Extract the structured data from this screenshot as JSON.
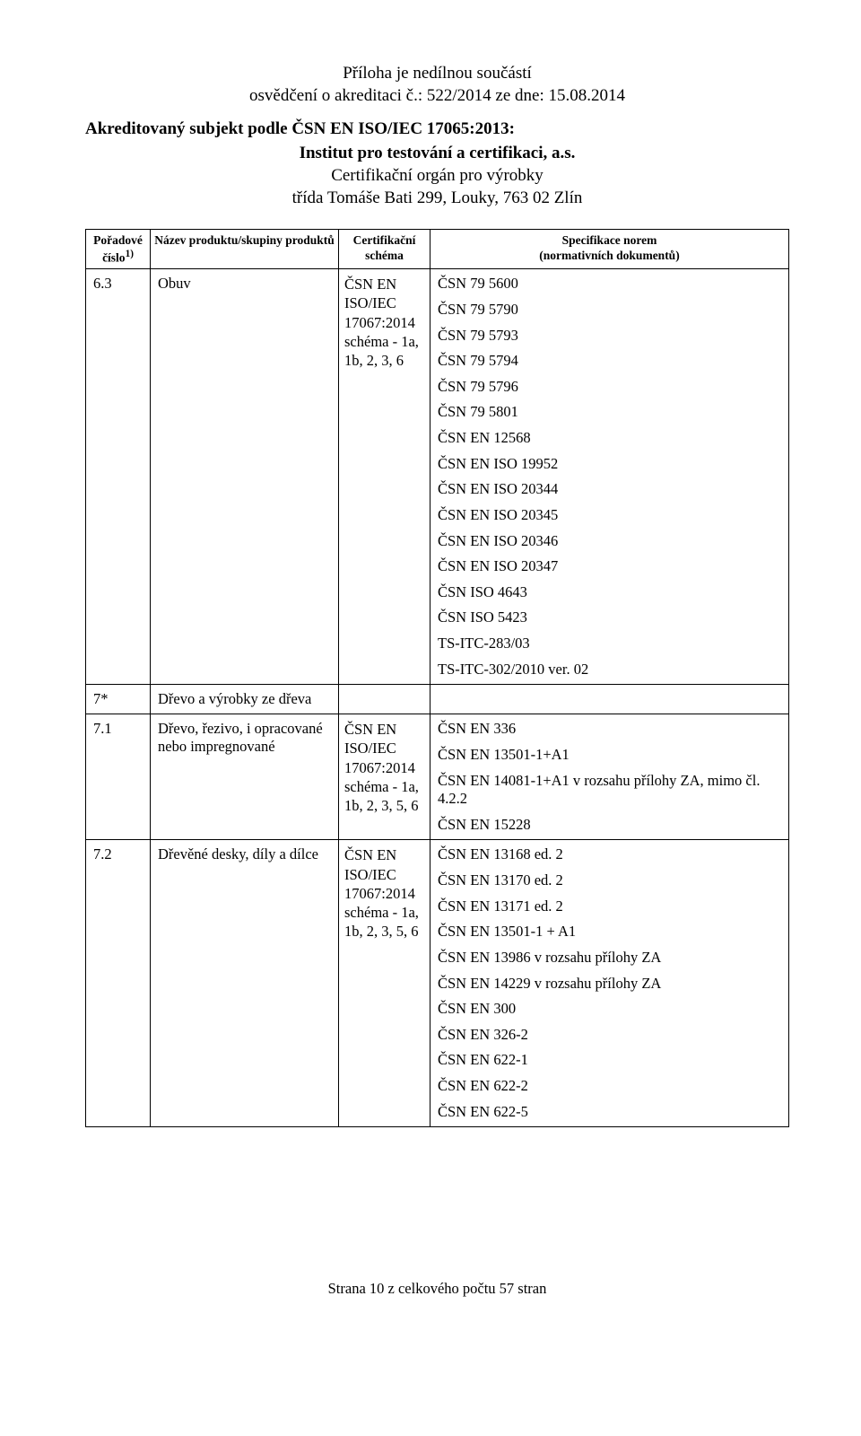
{
  "header": {
    "line1": "Příloha je nedílnou součástí",
    "line2": "osvědčení o akreditaci č.: 522/2014 ze dne: 15.08.2014",
    "left": "Akreditovaný subjekt podle ČSN EN ISO/IEC 17065:2013:",
    "sub1": "Institut pro testování a certifikaci, a.s.",
    "sub2": "Certifikační orgán pro výrobky",
    "sub3": "třída Tomáše Bati 299, Louky, 763 02 Zlín"
  },
  "table": {
    "headers": {
      "col1a": "Pořadové",
      "col1b": "číslo",
      "col1sup": "1)",
      "col2": "Název produktu/skupiny produktů",
      "col3a": "Certifikační",
      "col3b": "schéma",
      "col4a": "Specifikace norem",
      "col4b": "(normativních dokumentů)"
    },
    "rows": [
      {
        "num": "6.3",
        "name": "Obuv",
        "schema": "ČSN EN ISO/IEC 17067:2014 schéma - 1a, 1b, 2, 3, 6",
        "specs": [
          "ČSN 79 5600",
          "ČSN 79 5790",
          "ČSN 79 5793",
          "ČSN 79 5794",
          "ČSN 79 5796",
          "ČSN 79 5801",
          "ČSN EN 12568",
          "ČSN EN ISO 19952",
          "ČSN EN ISO 20344",
          "ČSN EN ISO 20345",
          "ČSN EN ISO 20346",
          "ČSN EN ISO 20347",
          "ČSN ISO 4643",
          "ČSN ISO 5423",
          "TS-ITC-283/03",
          "TS-ITC-302/2010 ver. 02"
        ]
      },
      {
        "num": "7*",
        "name": "Dřevo a výrobky ze dřeva",
        "schema": "",
        "specs": []
      },
      {
        "num": "7.1",
        "name": "Dřevo, řezivo, i opracované nebo impregnované",
        "schema": "ČSN EN ISO/IEC 17067:2014 schéma - 1a, 1b, 2, 3, 5, 6",
        "specs": [
          "ČSN EN 336",
          "ČSN EN 13501-1+A1",
          "ČSN EN 14081-1+A1 v rozsahu přílohy ZA, mimo čl. 4.2.2",
          "ČSN EN 15228"
        ]
      },
      {
        "num": "7.2",
        "name": "Dřevěné desky, díly a dílce",
        "schema": "ČSN EN ISO/IEC 17067:2014 schéma - 1a, 1b, 2, 3, 5, 6",
        "specs": [
          "ČSN EN 13168 ed. 2",
          "ČSN EN 13170 ed. 2",
          "ČSN EN 13171 ed. 2",
          "ČSN EN 13501-1 + A1",
          "ČSN EN 13986 v rozsahu přílohy ZA",
          "ČSN EN 14229 v rozsahu přílohy ZA",
          "ČSN EN 300",
          "ČSN EN 326-2",
          "ČSN EN 622-1",
          "ČSN EN 622-2",
          "ČSN EN 622-5"
        ]
      }
    ]
  },
  "footer": {
    "text": "Strana 10 z celkového počtu 57 stran"
  }
}
